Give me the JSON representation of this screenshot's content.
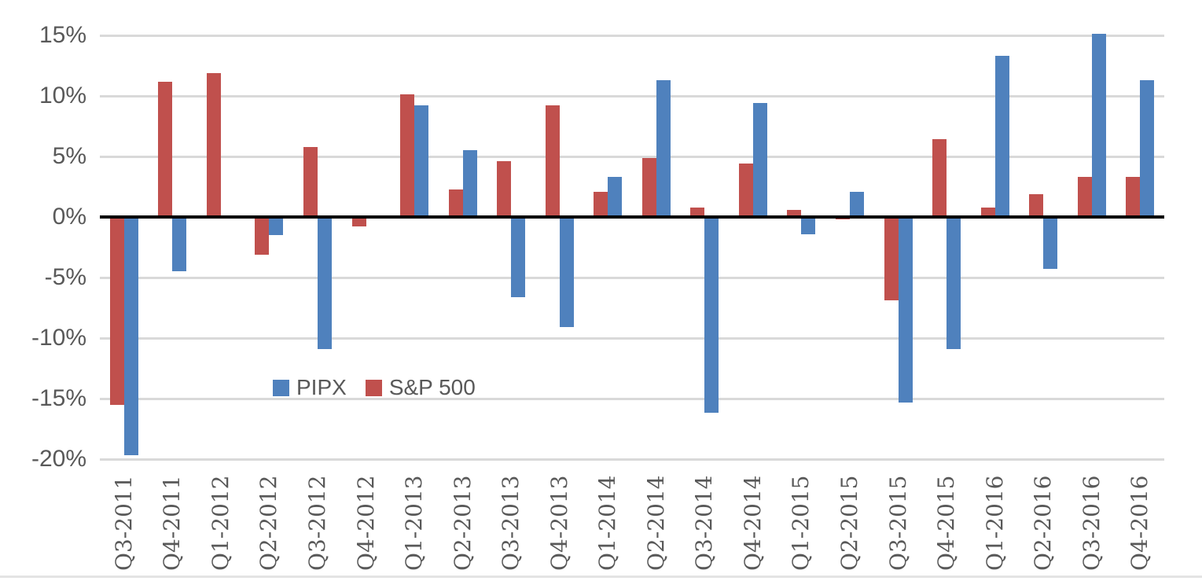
{
  "chart_data": {
    "type": "bar",
    "title": "",
    "xlabel": "",
    "ylabel": "",
    "categories": [
      "Q3-2011",
      "Q4-2011",
      "Q1-2012",
      "Q2-2012",
      "Q3-2012",
      "Q4-2012",
      "Q1-2013",
      "Q2-2013",
      "Q3-2013",
      "Q4-2013",
      "Q1-2014",
      "Q2-2014",
      "Q3-2014",
      "Q4-2014",
      "Q1-2015",
      "Q2-2015",
      "Q3-2015",
      "Q4-2015",
      "Q1-2016",
      "Q2-2016",
      "Q3-2016",
      "Q4-2016"
    ],
    "series": [
      {
        "name": "PIPX",
        "color": "#4f81bd",
        "values": [
          -19.7,
          -4.5,
          0.0,
          -1.5,
          -10.9,
          0.0,
          9.2,
          5.5,
          -6.6,
          -9.1,
          3.3,
          11.3,
          -16.2,
          9.4,
          -1.4,
          2.1,
          -15.3,
          -10.9,
          13.3,
          -4.3,
          15.1,
          11.3
        ]
      },
      {
        "name": "S&P 500",
        "color": "#c0504d",
        "values": [
          -15.5,
          11.2,
          11.9,
          -3.1,
          5.8,
          -0.8,
          10.1,
          2.3,
          4.6,
          9.2,
          2.1,
          4.9,
          0.8,
          4.4,
          0.6,
          -0.2,
          -6.9,
          6.4,
          0.8,
          1.9,
          3.3,
          3.3
        ]
      }
    ],
    "y_axis": {
      "min": -20,
      "max": 15,
      "step": 5,
      "tick_labels": [
        "15%",
        "10%",
        "5%",
        "0%",
        "-5%",
        "-10%",
        "-15%",
        "-20%"
      ],
      "format": "percent"
    },
    "grid": true,
    "legend_position": "inside-lower-left",
    "colors": {
      "gridline": "#d9d9d9",
      "zero_axis": "#000000",
      "tick_text": "#595959"
    }
  }
}
